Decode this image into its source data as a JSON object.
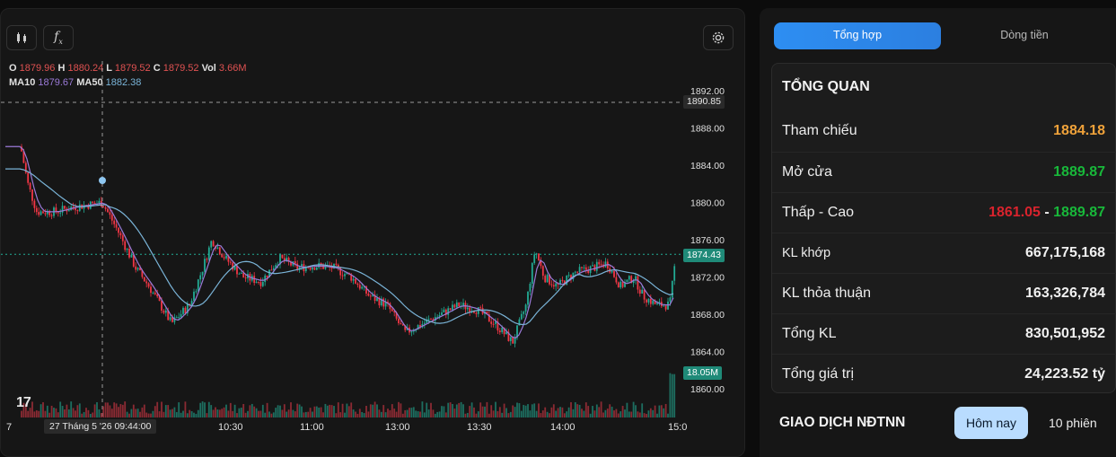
{
  "chart": {
    "ohlc": {
      "o_label": "O",
      "o": "1879.96",
      "h_label": "H",
      "h": "1880.24",
      "l_label": "L",
      "l": "1879.52",
      "c_label": "C",
      "c": "1879.52",
      "vol_label": "Vol",
      "vol": "3.66M"
    },
    "ma": {
      "ma10_label": "MA10",
      "ma10": "1879.67",
      "ma50_label": "MA50",
      "ma50": "1882.38"
    },
    "price_ticks": [
      "1892.00",
      "1888.00",
      "1884.00",
      "1880.00",
      "1876.00",
      "1872.00",
      "1868.00",
      "1864.00",
      "1860.00"
    ],
    "crosshair_price": "1890.85",
    "last_price": "1874.43",
    "volume_tag": "18.05M",
    "time_ticks": [
      "7",
      "10:30",
      "11:00",
      "13:00",
      "13:30",
      "14:00",
      "15:0"
    ],
    "time_cursor": "27 Tháng 5 '26   09:44:00",
    "logo": "17",
    "colors": {
      "up": "#22ab94",
      "down": "#f23645",
      "ma10": "#9b7ad8",
      "ma50": "#7ab4d8"
    }
  },
  "tabs": [
    {
      "label": "Tổng hợp",
      "active": true
    },
    {
      "label": "Dòng tiền",
      "active": false
    }
  ],
  "summary": {
    "title": "TỔNG QUAN",
    "rows": [
      {
        "label": "Tham chiếu",
        "value": "1884.18"
      },
      {
        "label": "Mở cửa",
        "value": "1889.87"
      },
      {
        "label": "Thấp - Cao",
        "low": "1861.05",
        "sep": " - ",
        "high": "1889.87"
      },
      {
        "label": "KL khớp",
        "value": "667,175,168"
      },
      {
        "label": "KL thỏa thuận",
        "value": "163,326,784"
      },
      {
        "label": "Tổng KL",
        "value": "830,501,952"
      },
      {
        "label": "Tổng giá trị",
        "value": "24,223.52 tỷ"
      }
    ]
  },
  "foreign": {
    "title": "GIAO DỊCH NĐTNN",
    "today": "Hôm nay",
    "ten": "10 phiên"
  },
  "icons": {
    "candles": "candles-icon",
    "fx": "indicator-fx-icon",
    "settings": "gear-icon"
  }
}
